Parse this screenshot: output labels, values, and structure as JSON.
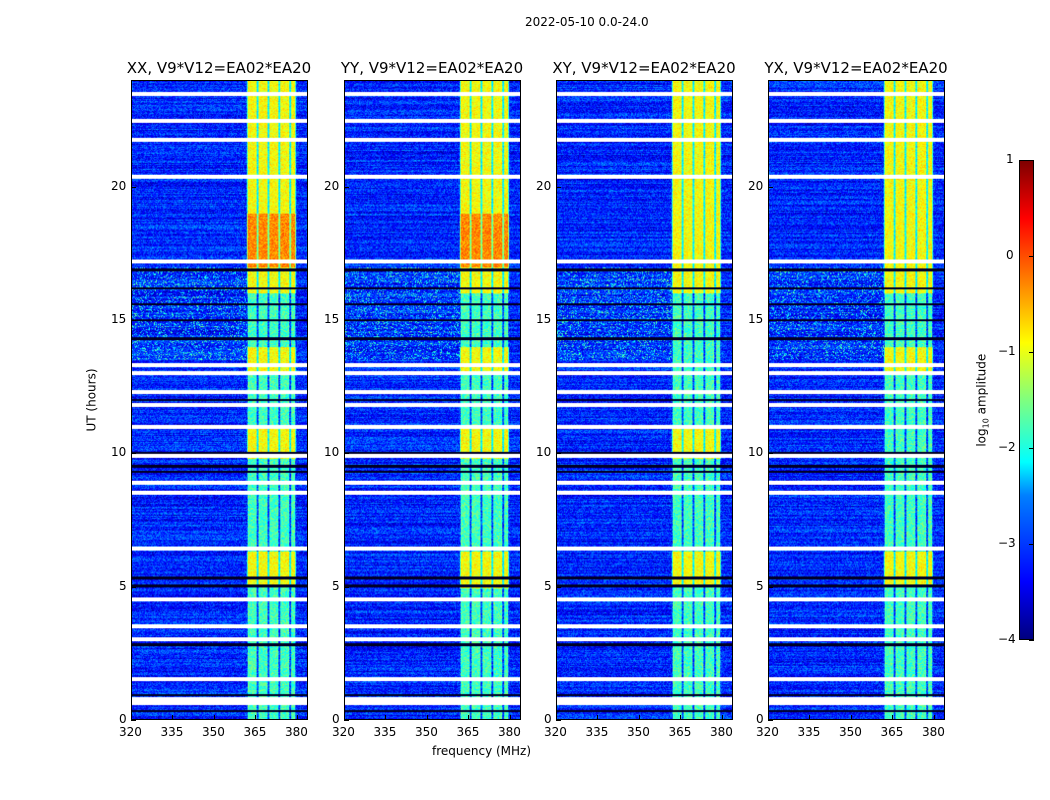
{
  "chart_data": {
    "type": "heatmap",
    "title": "2022-05-10 0.0-24.0",
    "xlabel": "frequency (MHz)",
    "ylabel": "UT (hours)",
    "xlim": [
      320,
      384
    ],
    "ylim": [
      0,
      24
    ],
    "xticks": [
      "320",
      "335",
      "350",
      "365",
      "380"
    ],
    "xtick_values": [
      320,
      335,
      350,
      365,
      380
    ],
    "yticks": [
      "0",
      "5",
      "10",
      "15",
      "20"
    ],
    "ytick_values": [
      0,
      5,
      10,
      15,
      20
    ],
    "panels": [
      {
        "title": "XX, V9*V12=EA02*EA20",
        "strong_rfi_hours": [
          [
            5,
            6.3
          ],
          [
            9.8,
            11
          ],
          [
            13,
            14
          ],
          [
            16,
            24
          ]
        ]
      },
      {
        "title": "YY, V9*V12=EA02*EA20",
        "strong_rfi_hours": [
          [
            4.9,
            6.3
          ],
          [
            9.8,
            11
          ],
          [
            13,
            14
          ],
          [
            16,
            24
          ]
        ]
      },
      {
        "title": "XY, V9*V12=EA02*EA20",
        "strong_rfi_hours": [
          [
            5,
            6.3
          ],
          [
            9.8,
            11
          ],
          [
            16,
            24
          ]
        ]
      },
      {
        "title": "YX, V9*V12=EA02*EA20",
        "strong_rfi_hours": [
          [
            5,
            6.3
          ],
          [
            13,
            14
          ],
          [
            16,
            24
          ]
        ]
      }
    ],
    "rfi_band_mhz": [
      362,
      380
    ],
    "rfi_subband_edges_mhz": [
      362,
      366,
      370,
      374,
      378,
      380
    ],
    "background_log_amplitude": -3.2,
    "flagged_hours": [
      0.6,
      0.75,
      1.5,
      3.0,
      3.5,
      4.5,
      6.4,
      8.5,
      8.9,
      9.9,
      11.0,
      11.8,
      12.3,
      13.0,
      13.3,
      17.2,
      20.4,
      21.8,
      22.5,
      23.5
    ],
    "gap_hours": [
      0.3,
      0.9,
      2.8,
      5.0,
      5.3,
      9.3,
      9.5,
      10.0,
      12.0,
      14.3,
      15.0,
      15.6,
      16.2,
      16.9
    ],
    "colorbar": {
      "label": "log10 amplitude",
      "label_base": "log",
      "label_sub": "10",
      "label_rest": " amplitude",
      "range": [
        -4,
        1
      ],
      "ticks": [
        "1",
        "0",
        "−1",
        "−2",
        "−3",
        "−4"
      ],
      "tick_values": [
        1,
        0,
        -1,
        -2,
        -3,
        -4
      ],
      "colormap": "jet"
    }
  }
}
